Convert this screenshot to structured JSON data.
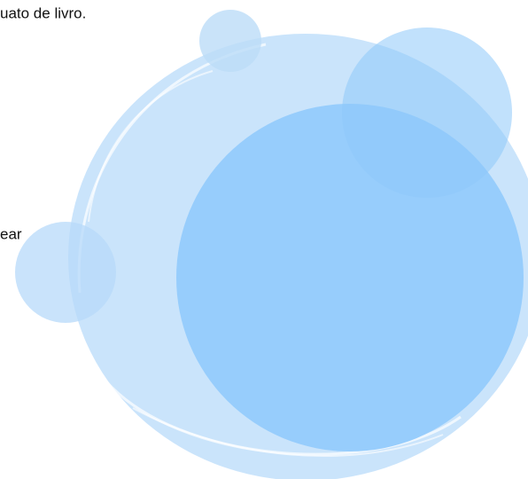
{
  "text_lines": [
    "uato de livro.",
    "ear"
  ]
}
